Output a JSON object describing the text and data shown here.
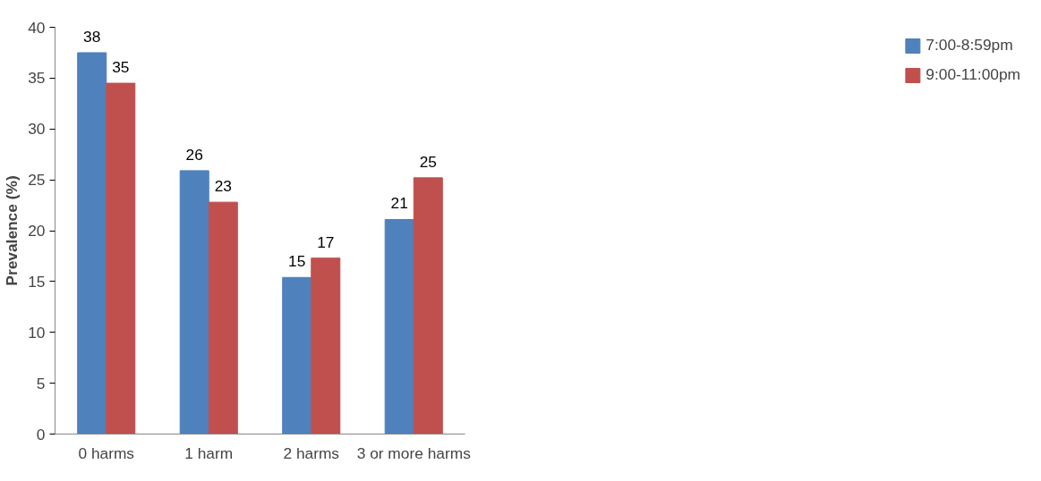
{
  "chart_data": {
    "type": "bar",
    "ylabel": "Prevalence (%)",
    "categories": [
      "0 harms",
      "1 harm",
      "2 harms",
      "3 or more harms"
    ],
    "series": [
      {
        "name": "7:00-8:59pm",
        "color": "#4f81bd",
        "values": [
          37.5,
          25.9,
          15.4,
          21.1
        ],
        "value_labels": [
          "38",
          "26",
          "15",
          "21"
        ]
      },
      {
        "name": "9:00-11:00pm",
        "color": "#c0504d",
        "values": [
          34.5,
          22.8,
          17.3,
          25.2
        ],
        "value_labels": [
          "35",
          "23",
          "17",
          "25"
        ]
      }
    ],
    "ylim": [
      0,
      40
    ],
    "yticks": [
      0,
      5,
      10,
      15,
      20,
      25,
      30,
      35,
      40
    ],
    "grid": false,
    "legend": "right"
  }
}
